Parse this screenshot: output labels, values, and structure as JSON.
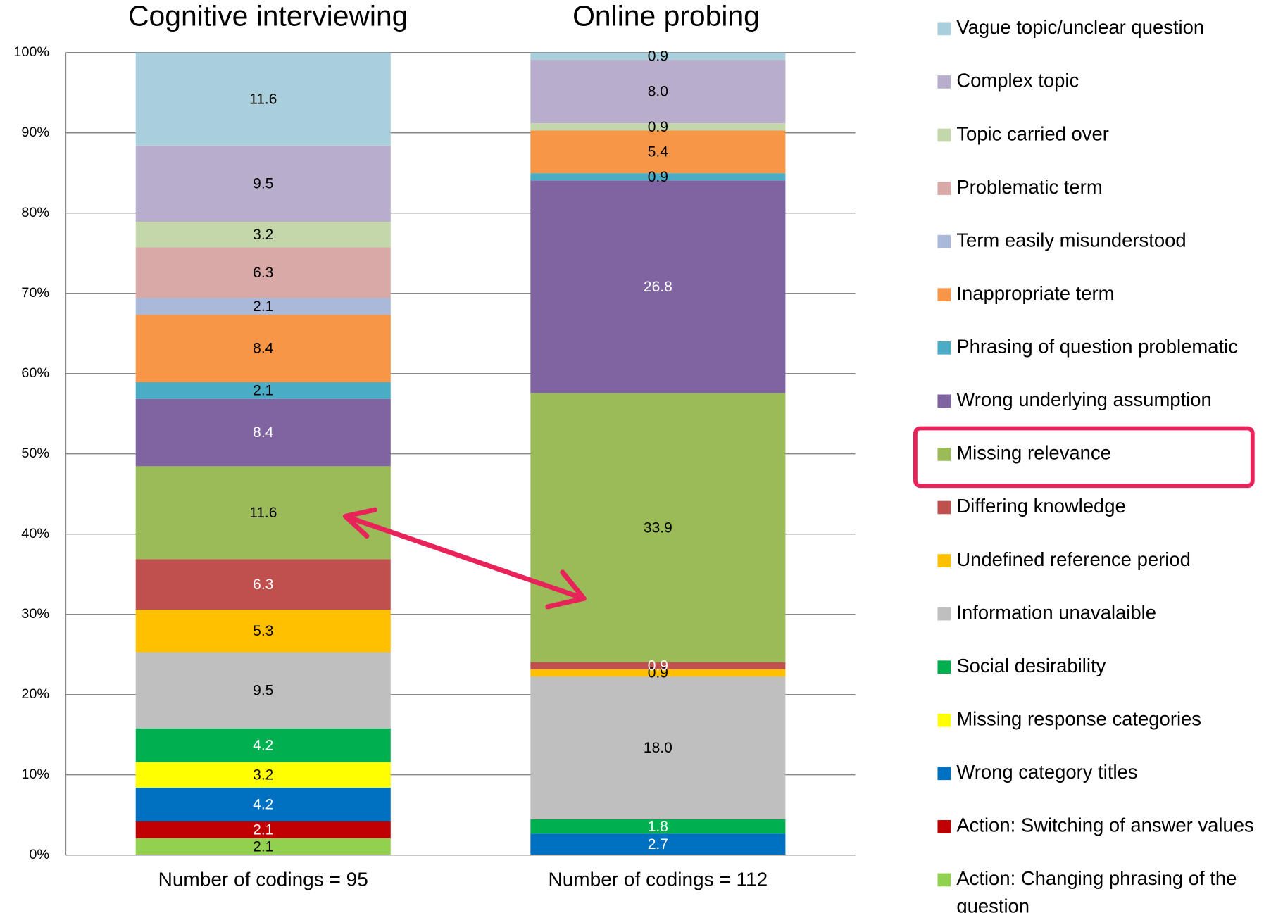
{
  "chart_data": {
    "type": "bar",
    "stacking": "percent",
    "categories": [
      "Cognitive interviewing",
      "Online probing"
    ],
    "notes": [
      "Number of codings = 95",
      "Number of codings = 112"
    ],
    "ylim": [
      0,
      100
    ],
    "yticks": [
      {
        "value": 0,
        "label": "0%"
      },
      {
        "value": 10,
        "label": "10%"
      },
      {
        "value": 20,
        "label": "20%"
      },
      {
        "value": 30,
        "label": "30%"
      },
      {
        "value": 40,
        "label": "40%"
      },
      {
        "value": 50,
        "label": "50%"
      },
      {
        "value": 60,
        "label": "60%"
      },
      {
        "value": 70,
        "label": "70%"
      },
      {
        "value": 80,
        "label": "80%"
      },
      {
        "value": 90,
        "label": "90%"
      },
      {
        "value": 100,
        "label": "100%"
      }
    ],
    "grid": true,
    "legend": "right",
    "highlight": "Missing relevance",
    "series": [
      {
        "name": "Vague topic/unclear question",
        "color": "#a9cfdc",
        "values": [
          11.6,
          0.9
        ],
        "value_labels": [
          "11.6",
          "0.9"
        ]
      },
      {
        "name": "Complex topic",
        "color": "#b8aecb",
        "values": [
          9.5,
          8.0
        ],
        "value_labels": [
          "9.5",
          "8.0"
        ]
      },
      {
        "name": "Topic carried over",
        "color": "#c4d7aa",
        "values": [
          3.2,
          0.9
        ],
        "value_labels": [
          "3.2",
          "0.9"
        ]
      },
      {
        "name": "Problematic term",
        "color": "#d9a9a8",
        "values": [
          6.3,
          null
        ],
        "value_labels": [
          "6.3",
          null
        ]
      },
      {
        "name": "Term easily misunderstood",
        "color": "#aab9d9",
        "values": [
          2.1,
          null
        ],
        "value_labels": [
          "2.1",
          null
        ]
      },
      {
        "name": "Inappropriate term",
        "color": "#f79646",
        "values": [
          8.4,
          5.4
        ],
        "value_labels": [
          "8.4",
          "5.4"
        ]
      },
      {
        "name": "Phrasing of question problematic",
        "color": "#4bacc6",
        "values": [
          2.1,
          0.9
        ],
        "value_labels": [
          "2.1",
          "0.9"
        ]
      },
      {
        "name": "Wrong underlying assumption",
        "color": "#8064a2",
        "values": [
          8.4,
          26.8
        ],
        "value_labels": [
          "8.4",
          "26.8"
        ]
      },
      {
        "name": "Missing relevance",
        "color": "#9bbb59",
        "values": [
          11.6,
          33.9
        ],
        "value_labels": [
          "11.6",
          "33.9"
        ]
      },
      {
        "name": "Differing knowledge",
        "color": "#c0504d",
        "values": [
          6.3,
          0.9
        ],
        "value_labels": [
          "6.3",
          "0.9"
        ]
      },
      {
        "name": "Undefined reference period",
        "color": "#ffc000",
        "values": [
          5.3,
          0.9
        ],
        "value_labels": [
          "5.3",
          "0.9"
        ]
      },
      {
        "name": "Information unavalaible",
        "color": "#bfbfbf",
        "values": [
          9.5,
          18.0
        ],
        "value_labels": [
          "9.5",
          "18.0"
        ]
      },
      {
        "name": "Social desirability",
        "color": "#00b050",
        "values": [
          4.2,
          1.8
        ],
        "value_labels": [
          "4.2",
          "1.8"
        ]
      },
      {
        "name": "Missing response categories",
        "color": "#ffff00",
        "values": [
          3.2,
          null
        ],
        "value_labels": [
          "3.2",
          null
        ]
      },
      {
        "name": "Wrong category titles",
        "color": "#0070c0",
        "values": [
          4.2,
          2.7
        ],
        "value_labels": [
          "4.2",
          "2.7"
        ]
      },
      {
        "name": "Action: Switching of answer values",
        "color": "#c00000",
        "values": [
          2.1,
          null
        ],
        "value_labels": [
          "2.1",
          null
        ]
      },
      {
        "name": "Action: Changing phrasing of the question",
        "color": "#92d050",
        "values": [
          2.1,
          null
        ],
        "value_labels": [
          "2.1",
          null
        ]
      }
    ]
  }
}
